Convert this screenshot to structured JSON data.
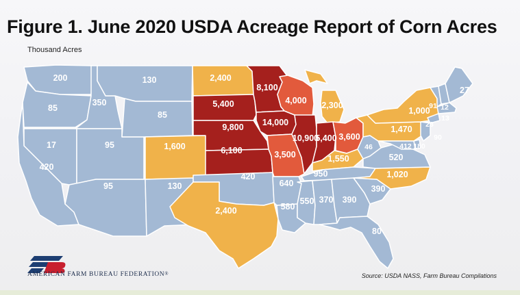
{
  "title": "Figure 1. June 2020 USDA Acreage Report of Corn Acres",
  "unit_label": "Thousand Acres",
  "organization": "AMERICAN FARM BUREAU FEDERATION",
  "organization_mark": "®",
  "source": "Source: USDA NASS, Farm Bureau Compilations",
  "colors": {
    "low": "#a3b9d4",
    "mid": "#f0b24a",
    "high": "#e25a3c",
    "top": "#a5201d",
    "label": "#ffffff",
    "logo_blue": "#1d3e72",
    "logo_red": "#c8202f"
  },
  "states": [
    {
      "state": "WA",
      "acres": "200"
    },
    {
      "state": "OR",
      "acres": "85"
    },
    {
      "state": "ID",
      "acres": "350"
    },
    {
      "state": "MT",
      "acres": "130"
    },
    {
      "state": "NV",
      "acres": "17"
    },
    {
      "state": "CA",
      "acres": "420"
    },
    {
      "state": "UT",
      "acres": "95"
    },
    {
      "state": "AZ",
      "acres": "95"
    },
    {
      "state": "WY",
      "acres": "85"
    },
    {
      "state": "CO",
      "acres": "1,600"
    },
    {
      "state": "NM",
      "acres": "130"
    },
    {
      "state": "ND",
      "acres": "2,400"
    },
    {
      "state": "SD",
      "acres": "5,400"
    },
    {
      "state": "NE",
      "acres": "9,800"
    },
    {
      "state": "KS",
      "acres": "6,100"
    },
    {
      "state": "OK",
      "acres": "420"
    },
    {
      "state": "TX",
      "acres": "2,400"
    },
    {
      "state": "MN",
      "acres": "8,100"
    },
    {
      "state": "IA",
      "acres": "14,000"
    },
    {
      "state": "MO",
      "acres": "3,500"
    },
    {
      "state": "AR",
      "acres": "640"
    },
    {
      "state": "LA",
      "acres": "580"
    },
    {
      "state": "WI",
      "acres": "4,000"
    },
    {
      "state": "IL",
      "acres": "10,900"
    },
    {
      "state": "MI",
      "acres": "2,300"
    },
    {
      "state": "IN",
      "acres": "5,400"
    },
    {
      "state": "OH",
      "acres": "3,600"
    },
    {
      "state": "KY",
      "acres": "1,550"
    },
    {
      "state": "TN",
      "acres": "950"
    },
    {
      "state": "MS",
      "acres": "550"
    },
    {
      "state": "AL",
      "acres": "370"
    },
    {
      "state": "GA",
      "acres": "390"
    },
    {
      "state": "FL",
      "acres": "80"
    },
    {
      "state": "SC",
      "acres": "390"
    },
    {
      "state": "NC",
      "acres": "1,020"
    },
    {
      "state": "VA",
      "acres": "520"
    },
    {
      "state": "WV",
      "acres": "46"
    },
    {
      "state": "PA",
      "acres": "1,470"
    },
    {
      "state": "NY",
      "acres": "1,000"
    },
    {
      "state": "VT",
      "acres": "91"
    },
    {
      "state": "NH",
      "acres": "12"
    },
    {
      "state": "ME",
      "acres": "27"
    },
    {
      "state": "MA",
      "acres": "13"
    },
    {
      "state": "CT",
      "acres": "23"
    },
    {
      "state": "NJ",
      "acres": "90"
    },
    {
      "state": "DE",
      "acres": "180"
    },
    {
      "state": "MD",
      "acres": "412"
    }
  ]
}
